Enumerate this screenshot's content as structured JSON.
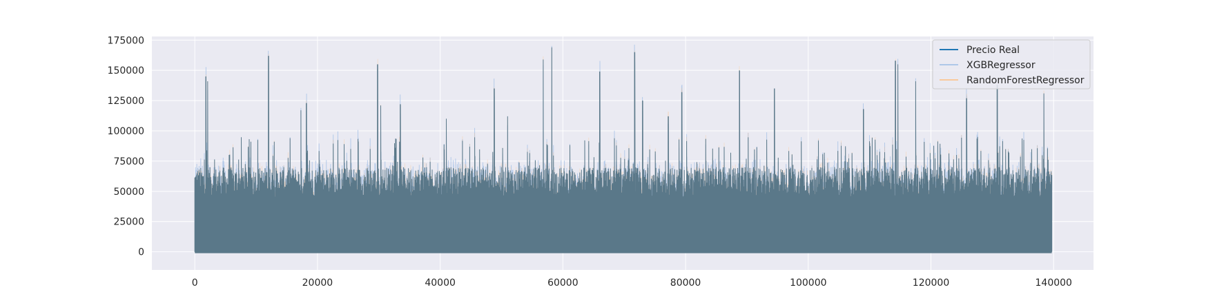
{
  "chart_data": {
    "type": "line",
    "title": "",
    "xlabel": "",
    "ylabel": "",
    "xlim": [
      -7000,
      146500
    ],
    "ylim": [
      -15000,
      178000
    ],
    "xticks": [
      0,
      20000,
      40000,
      60000,
      80000,
      100000,
      120000,
      140000
    ],
    "yticks": [
      0,
      25000,
      50000,
      75000,
      100000,
      125000,
      150000,
      175000
    ],
    "x_range": [
      0,
      139700
    ],
    "grid": true,
    "legend_position": "top-right",
    "peaks": [
      [
        1800,
        145000
      ],
      [
        2100,
        141000
      ],
      [
        12000,
        162000
      ],
      [
        17300,
        117000
      ],
      [
        18200,
        123000
      ],
      [
        29800,
        155000
      ],
      [
        30300,
        121000
      ],
      [
        33500,
        122000
      ],
      [
        41000,
        110000
      ],
      [
        48800,
        135000
      ],
      [
        51000,
        112000
      ],
      [
        56800,
        159000
      ],
      [
        58200,
        169000
      ],
      [
        66000,
        149000
      ],
      [
        71700,
        165000
      ],
      [
        73000,
        125000
      ],
      [
        77200,
        112000
      ],
      [
        79400,
        132000
      ],
      [
        88800,
        150000
      ],
      [
        94500,
        135000
      ],
      [
        109000,
        118000
      ],
      [
        114200,
        158000
      ],
      [
        114600,
        155000
      ],
      [
        117500,
        141000
      ],
      [
        125800,
        127000
      ],
      [
        130800,
        138000
      ],
      [
        138400,
        131000
      ]
    ],
    "series": [
      {
        "name": "Precio Real",
        "color": "#1f77b4",
        "alpha": 1.0,
        "style": "solid"
      },
      {
        "name": "XGBRegressor",
        "color": "#aec7e8",
        "alpha": 1.0,
        "style": "solid"
      },
      {
        "name": "RandomForestRegressor",
        "color": "#ffbb78",
        "alpha": 0.7,
        "style": "solid"
      }
    ],
    "band_color": "#5a7889"
  }
}
